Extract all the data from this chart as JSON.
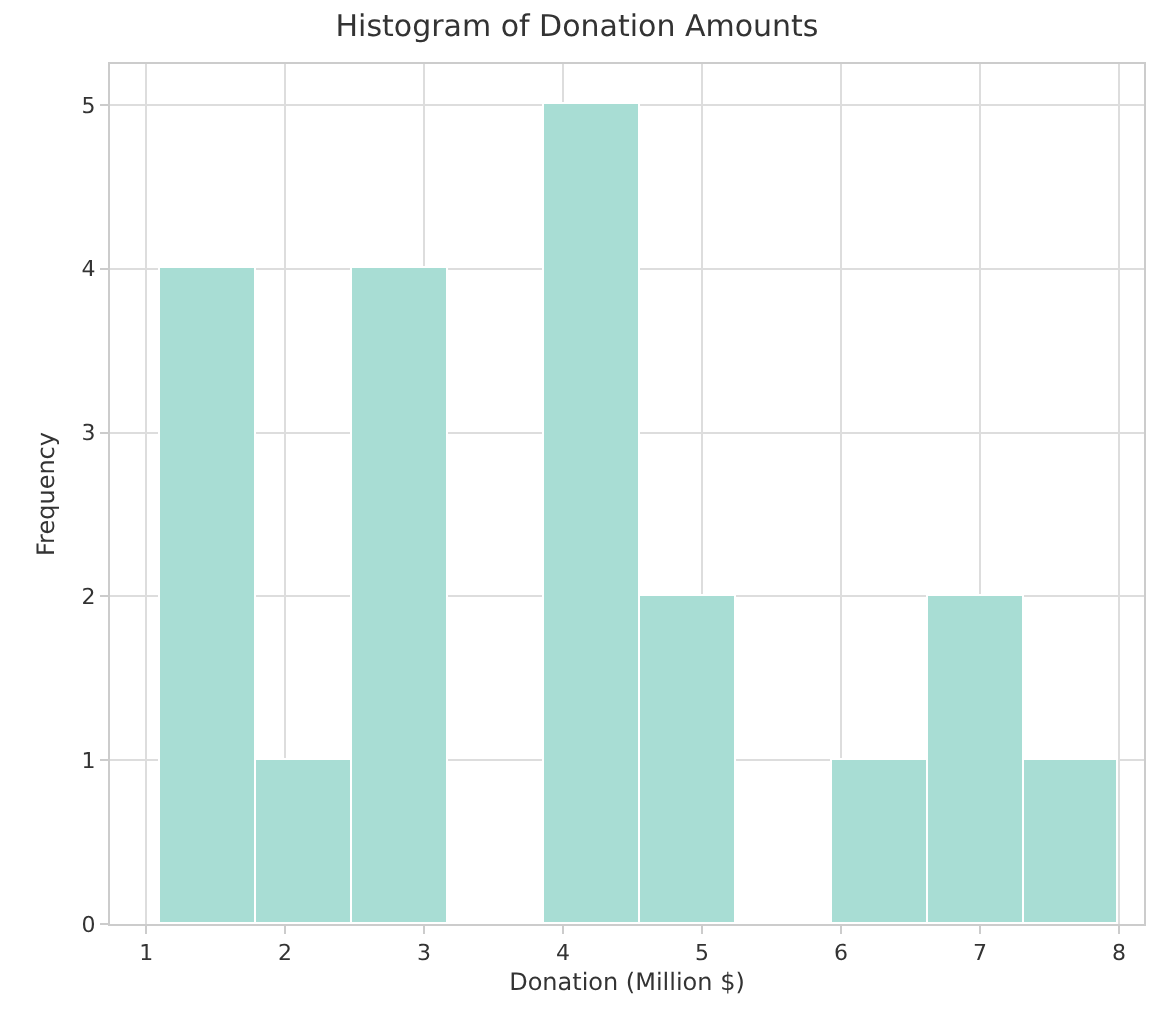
{
  "chart_data": {
    "type": "histogram",
    "title": "Histogram of Donation Amounts",
    "xlabel": "Donation (Million $)",
    "ylabel": "Frequency",
    "bins": [
      1.1,
      1.79,
      2.48,
      3.17,
      3.86,
      4.55,
      5.24,
      5.93,
      6.62,
      7.31,
      8.0
    ],
    "values": [
      4,
      1,
      4,
      0,
      5,
      2,
      0,
      1,
      2,
      1
    ],
    "color": "#a8ddd4",
    "xlim": [
      0.74,
      8.18
    ],
    "xticks": [
      1,
      2,
      3,
      4,
      5,
      6,
      7,
      8
    ],
    "ylim": [
      0,
      5.25
    ],
    "yticks": [
      0,
      1,
      2,
      3,
      4,
      5
    ],
    "grid": true
  }
}
